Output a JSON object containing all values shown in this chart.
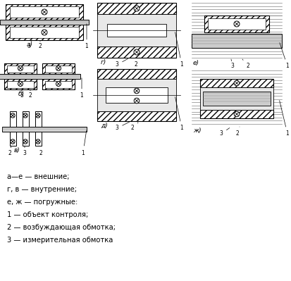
{
  "background": "#ffffff",
  "legend_lines": [
    "а—е — внешние;",
    "г, в — внутренние;",
    "е, ж — погружные:",
    "1 — объект контроля;",
    "2 — возбуждающая обмотка;",
    "3 — измерительная обмотка"
  ]
}
